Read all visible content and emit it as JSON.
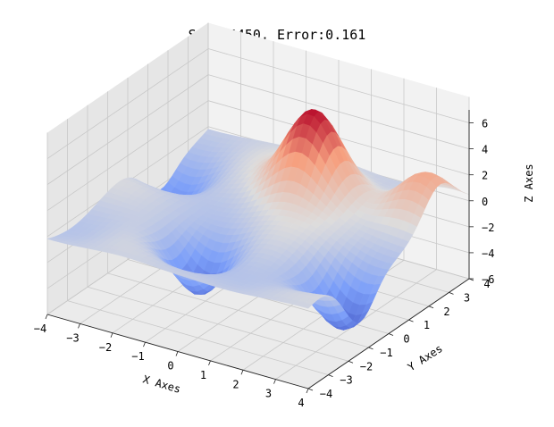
{
  "title": "Step:4450, Error:0.161",
  "chart_data": {
    "type": "surface3d",
    "title": "Step:4450, Error:0.161",
    "step": 4450,
    "error": 0.161,
    "xlabel": "X Axes",
    "ylabel": "Y Axes",
    "zlabel": "Z Axes",
    "xlim": [
      -4,
      4
    ],
    "ylim": [
      -4,
      4
    ],
    "zlim": [
      -6,
      7
    ],
    "x_ticks": [
      -4,
      -3,
      -2,
      -1,
      0,
      1,
      2,
      3,
      4
    ],
    "y_ticks": [
      -4,
      -3,
      -2,
      -1,
      0,
      1,
      2,
      3,
      4
    ],
    "z_ticks": [
      -6,
      -4,
      -2,
      0,
      2,
      4,
      6
    ],
    "colormap": "coolwarm",
    "grid": true,
    "surface_features": [
      {
        "kind": "peak",
        "x": 0.5,
        "y": 2.0,
        "z": 6.8
      },
      {
        "kind": "trough",
        "x": -0.5,
        "y": -2.0,
        "z": -5.5
      },
      {
        "kind": "trough",
        "x": 3.5,
        "y": -1.5,
        "z": -4.5
      },
      {
        "kind": "trough",
        "x": -3.5,
        "y": 1.5,
        "z": -2.8
      },
      {
        "kind": "peak",
        "x": 3.5,
        "y": 2.5,
        "z": 2.8
      },
      {
        "kind": "peak",
        "x": 0.0,
        "y": -2.0,
        "z": 1.5
      }
    ]
  }
}
